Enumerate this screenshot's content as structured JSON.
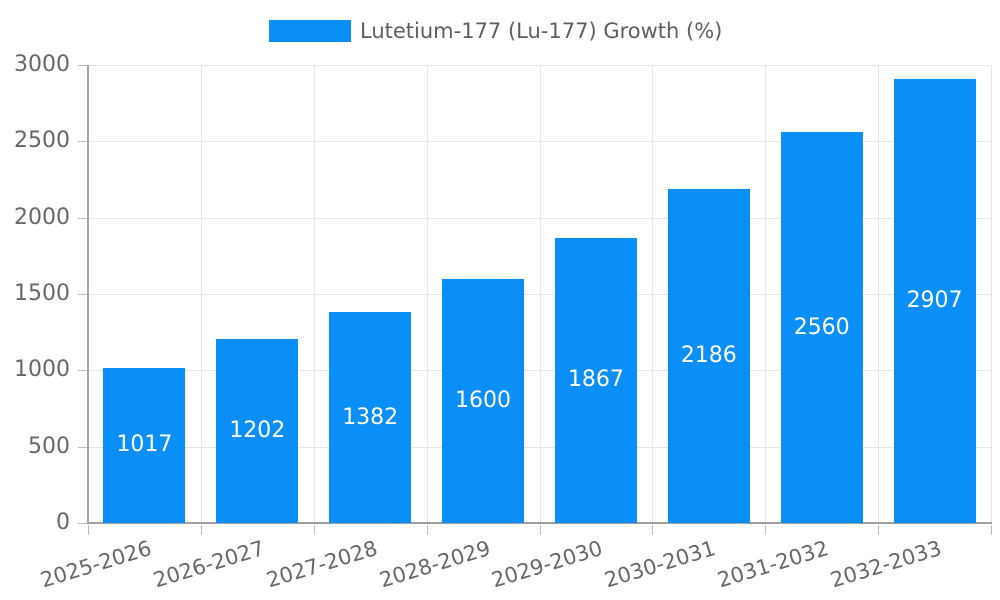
{
  "chart_data": {
    "type": "bar",
    "title": "",
    "legend_label": "Lutetium-177 (Lu-177) Growth (%)",
    "legend_position": "top",
    "categories": [
      "2025-2026",
      "2026-2027",
      "2027-2028",
      "2028-2029",
      "2029-2030",
      "2030-2031",
      "2031-2032",
      "2032-2033"
    ],
    "values": [
      1017,
      1202,
      1382,
      1600,
      1867,
      2186,
      2560,
      2907
    ],
    "value_labels": [
      "1017",
      "1202",
      "1382",
      "1600",
      "1867",
      "2186",
      "2560",
      "2907"
    ],
    "xlabel": "",
    "ylabel": "",
    "ylim": [
      0,
      3000
    ],
    "ytick_step": 500,
    "yticks": [
      "0",
      "500",
      "1000",
      "1500",
      "2000",
      "2500",
      "3000"
    ],
    "grid": true,
    "xtick_rotation_deg": -17,
    "bar_color": "#0a8ff8",
    "value_label_color": "#ffffff",
    "axis_text_color": "#686868",
    "grid_color": "#e6e6e6"
  }
}
